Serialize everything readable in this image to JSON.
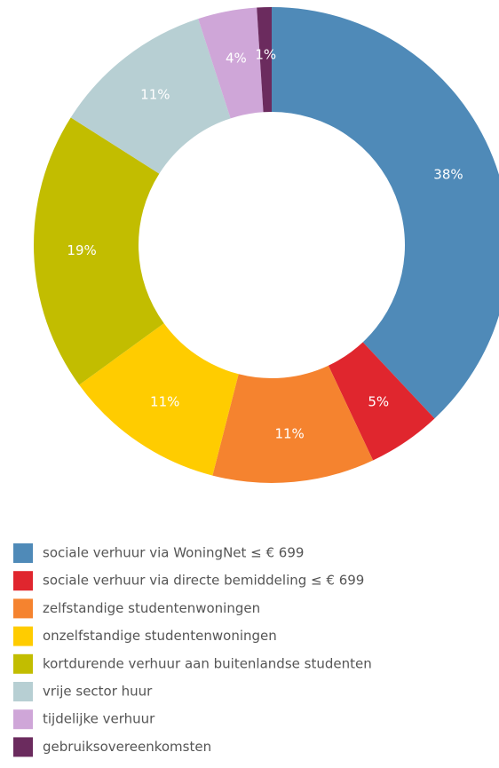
{
  "chart_data": {
    "type": "donut",
    "categories": [
      "sociale verhuur via WoningNet ≤ € 699",
      "sociale verhuur via directe bemiddeling ≤ € 699",
      "zelfstandige studentenwoningen",
      "onzelfstandige studentenwoningen",
      "kortdurende verhuur aan buitenlandse studenten",
      "vrije sector huur",
      "tijdelijke verhuur",
      "gebruiksovereenkomsten"
    ],
    "values": [
      38,
      5,
      11,
      11,
      19,
      11,
      4,
      1
    ],
    "value_labels": [
      "38%",
      "5%",
      "11%",
      "11%",
      "19%",
      "11%",
      "4%",
      "1%"
    ],
    "colors": [
      "#4f8ab8",
      "#e0262e",
      "#f5832f",
      "#ffcc00",
      "#c2bd00",
      "#b7cfd3",
      "#cfa6d8",
      "#6b2b5e"
    ],
    "legend": "bottom"
  }
}
